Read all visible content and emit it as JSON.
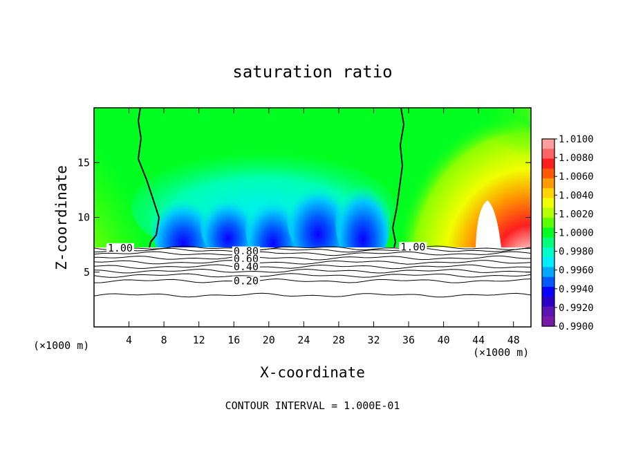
{
  "chart_data": {
    "type": "heatmap",
    "title": "saturation ratio",
    "xlabel": "X-coordinate",
    "ylabel": "Z-coordinate",
    "x_unit": "(×1000 m)",
    "x_unit_right": "(×1000 m)",
    "xlim": [
      0,
      50
    ],
    "ylim": [
      0,
      20
    ],
    "x_ticks": [
      4,
      8,
      12,
      16,
      20,
      24,
      28,
      32,
      36,
      40,
      44,
      48
    ],
    "y_ticks": [
      5,
      10,
      15
    ],
    "footer": "CONTOUR INTERVAL = 1.000E-01",
    "colorbar": {
      "min": 0.99,
      "max": 1.01,
      "labels": [
        "1.0100",
        "1.0080",
        "1.0060",
        "1.0040",
        "1.0020",
        "1.0000",
        "0.9980",
        "0.9960",
        "0.9940",
        "0.9920",
        "0.9900"
      ],
      "colors": [
        "#ff9e9e",
        "#ff6464",
        "#ff1e1e",
        "#ff5a00",
        "#ff9a00",
        "#ffd400",
        "#f0ff00",
        "#b4ff00",
        "#5cff00",
        "#00ff20",
        "#00ff7a",
        "#00ffc8",
        "#00ecff",
        "#00a8ff",
        "#005aff",
        "#0a00ff",
        "#2a00c8",
        "#5a14b4",
        "#7a1aa8"
      ]
    },
    "contour_labels": [
      {
        "text": "1.00",
        "x": 3.0,
        "z": 7.2
      },
      {
        "text": "1.00",
        "x": 36.5,
        "z": 7.3
      },
      {
        "text": "0.80",
        "x": 17.4,
        "z": 6.9
      },
      {
        "text": "0.60",
        "x": 17.4,
        "z": 6.2
      },
      {
        "text": "0.40",
        "x": 17.4,
        "z": 5.5
      },
      {
        "text": "0.20",
        "x": 17.4,
        "z": 4.2
      }
    ],
    "contour_lines": [
      {
        "level": 1.0,
        "z": 7.2
      },
      {
        "level": 0.9,
        "z": 7.0
      },
      {
        "level": 0.8,
        "z": 6.7
      },
      {
        "level": 0.7,
        "z": 6.3
      },
      {
        "level": 0.6,
        "z": 5.9
      },
      {
        "level": 0.5,
        "z": 5.5
      },
      {
        "level": 0.4,
        "z": 5.1
      },
      {
        "level": 0.3,
        "z": 4.7
      },
      {
        "level": 0.2,
        "z": 4.2
      },
      {
        "level": 0.1,
        "z": 2.9
      }
    ]
  }
}
